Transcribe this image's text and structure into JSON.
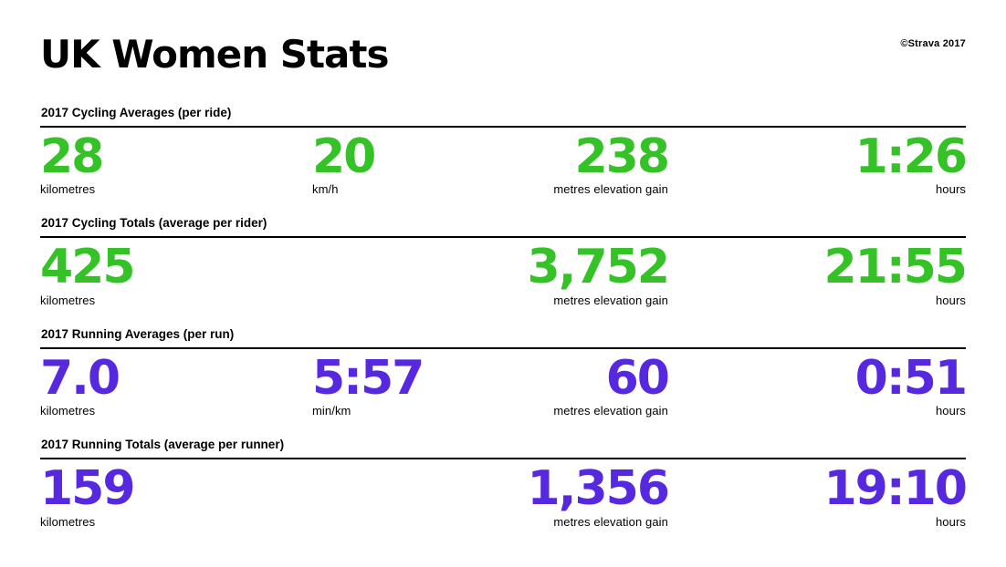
{
  "page": {
    "title": "UK Women Stats",
    "credit": "©Strava 2017"
  },
  "colors": {
    "cycling_green": "#34c226",
    "running_purple": "#5629e0"
  },
  "chart_data": {
    "type": "table",
    "title": "UK Women Stats",
    "sections": [
      {
        "header": "2017 Cycling Averages (per ride)",
        "theme": "cycling",
        "stats": [
          {
            "value": "28",
            "label": "kilometres"
          },
          {
            "value": "20",
            "label": "km/h"
          },
          {
            "value": "238",
            "label": "metres elevation gain"
          },
          {
            "value": "1:26",
            "label": "hours"
          }
        ]
      },
      {
        "header": "2017 Cycling Totals (average per rider)",
        "theme": "cycling",
        "stats": [
          {
            "value": "425",
            "label": "kilometres"
          },
          null,
          {
            "value": "3,752",
            "label": "metres elevation gain"
          },
          {
            "value": "21:55",
            "label": "hours"
          }
        ]
      },
      {
        "header": "2017 Running Averages (per run)",
        "theme": "running",
        "stats": [
          {
            "value": "7.0",
            "label": "kilometres"
          },
          {
            "value": "5:57",
            "label": "min/km"
          },
          {
            "value": "60",
            "label": "metres elevation gain"
          },
          {
            "value": "0:51",
            "label": "hours"
          }
        ]
      },
      {
        "header": "2017 Running Totals (average per runner)",
        "theme": "running",
        "stats": [
          {
            "value": "159",
            "label": "kilometres"
          },
          null,
          {
            "value": "1,356",
            "label": "metres elevation gain"
          },
          {
            "value": "19:10",
            "label": "hours"
          }
        ]
      }
    ]
  }
}
